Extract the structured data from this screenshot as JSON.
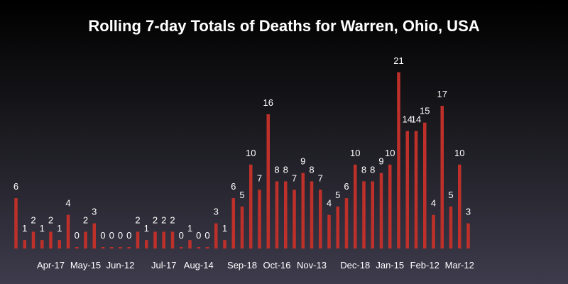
{
  "chart_data": {
    "type": "bar",
    "title": "Rolling 7-day Totals of Deaths for Warren, Ohio, USA",
    "xlabel": "",
    "ylabel": "",
    "ylim": [
      0,
      22
    ],
    "grid": false,
    "bar_color": "#c0302a",
    "values": [
      6,
      1,
      2,
      1,
      2,
      1,
      4,
      0,
      2,
      3,
      0,
      0,
      0,
      0,
      2,
      1,
      2,
      2,
      2,
      0,
      1,
      0,
      0,
      3,
      1,
      6,
      5,
      10,
      7,
      16,
      8,
      8,
      7,
      9,
      8,
      7,
      4,
      5,
      6,
      10,
      8,
      8,
      9,
      10,
      21,
      14,
      14,
      15,
      4,
      17,
      5,
      10,
      3
    ],
    "tick_labels": [
      {
        "index": 4,
        "label": "Apr-17"
      },
      {
        "index": 8,
        "label": "May-15"
      },
      {
        "index": 12,
        "label": "Jun-12"
      },
      {
        "index": 17,
        "label": "Jul-17"
      },
      {
        "index": 21,
        "label": "Aug-14"
      },
      {
        "index": 26,
        "label": "Sep-18"
      },
      {
        "index": 30,
        "label": "Oct-16"
      },
      {
        "index": 34,
        "label": "Nov-13"
      },
      {
        "index": 39,
        "label": "Dec-18"
      },
      {
        "index": 43,
        "label": "Jan-15"
      },
      {
        "index": 47,
        "label": "Feb-12"
      },
      {
        "index": 51,
        "label": "Mar-12"
      }
    ]
  }
}
